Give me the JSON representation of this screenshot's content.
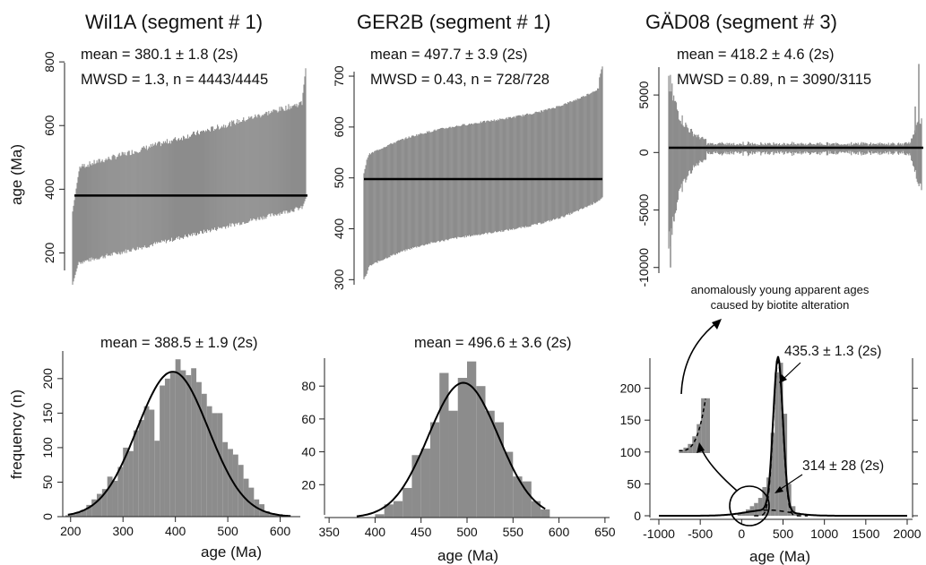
{
  "chart_data": [
    {
      "type": "bar",
      "panel": "top-left",
      "title": "Wil1A (segment # 1)",
      "stat_mean": "mean = 380.1 ± 1.8 (2s)",
      "stat_mwsd": "MWSD = 1.3, n = 4443/4445",
      "ylabel": "age (Ma)",
      "yticks": [
        "200",
        "400",
        "600",
        "800"
      ],
      "ylim": [
        100,
        820
      ],
      "mean_line": 380.1,
      "ranked_ages": {
        "low_start": 310,
        "low_end": 460,
        "mid_low": 250,
        "mid_high": 520,
        "high_start": 600,
        "high_end": 780,
        "base_start": 100,
        "base_end": 330
      },
      "grid": false
    },
    {
      "type": "bar",
      "panel": "top-middle",
      "title": "GER2B (segment # 1)",
      "stat_mean": "mean = 497.7 ± 3.9 (2s)",
      "stat_mwsd": "MWSD = 0.43, n = 728/728",
      "yticks": [
        "300",
        "400",
        "500",
        "600",
        "700"
      ],
      "ylim": [
        290,
        730
      ],
      "mean_line": 497.7,
      "ranked_ages": {
        "top_start": 510,
        "top_mid": 610,
        "top_end": 720,
        "bot_start": 300,
        "bot_mid": 400,
        "bot_end": 470
      },
      "grid": false
    },
    {
      "type": "bar",
      "panel": "top-right",
      "title": "GÄD08 (segment # 3)",
      "stat_mean": "mean = 418.2 ± 4.6 (2s)",
      "stat_mwsd": "MWSD = 0.89, n = 3090/3115",
      "yticks": [
        "-10000",
        "-5000",
        "0",
        "5000"
      ],
      "ylim": [
        -11500,
        8200
      ],
      "mean_line": 418.2,
      "grid": false
    },
    {
      "type": "bar",
      "panel": "bottom-left",
      "stat_mean": "mean = 388.5 ± 1.9 (2s)",
      "xlabel": "age (Ma)",
      "ylabel": "frequency (n)",
      "xticks": [
        "200",
        "300",
        "400",
        "500",
        "600"
      ],
      "yticks": [
        "0",
        "50",
        "100",
        "150",
        "200"
      ],
      "xlim": [
        185,
        635
      ],
      "ylim": [
        0,
        240
      ],
      "bins": [
        {
          "x": 190,
          "count": 2
        },
        {
          "x": 200,
          "count": 4
        },
        {
          "x": 210,
          "count": 6
        },
        {
          "x": 220,
          "count": 10
        },
        {
          "x": 230,
          "count": 17
        },
        {
          "x": 240,
          "count": 25
        },
        {
          "x": 250,
          "count": 33
        },
        {
          "x": 260,
          "count": 40
        },
        {
          "x": 270,
          "count": 58
        },
        {
          "x": 280,
          "count": 52
        },
        {
          "x": 290,
          "count": 72
        },
        {
          "x": 300,
          "count": 100
        },
        {
          "x": 310,
          "count": 95
        },
        {
          "x": 320,
          "count": 125
        },
        {
          "x": 330,
          "count": 140
        },
        {
          "x": 340,
          "count": 160
        },
        {
          "x": 350,
          "count": 155
        },
        {
          "x": 360,
          "count": 110
        },
        {
          "x": 370,
          "count": 190
        },
        {
          "x": 380,
          "count": 200
        },
        {
          "x": 390,
          "count": 210
        },
        {
          "x": 400,
          "count": 228
        },
        {
          "x": 410,
          "count": 212
        },
        {
          "x": 420,
          "count": 205
        },
        {
          "x": 430,
          "count": 215
        },
        {
          "x": 440,
          "count": 195
        },
        {
          "x": 450,
          "count": 178
        },
        {
          "x": 460,
          "count": 160
        },
        {
          "x": 470,
          "count": 150
        },
        {
          "x": 480,
          "count": 150
        },
        {
          "x": 490,
          "count": 108
        },
        {
          "x": 500,
          "count": 98
        },
        {
          "x": 510,
          "count": 90
        },
        {
          "x": 520,
          "count": 75
        },
        {
          "x": 530,
          "count": 55
        },
        {
          "x": 540,
          "count": 42
        },
        {
          "x": 550,
          "count": 25
        },
        {
          "x": 560,
          "count": 18
        },
        {
          "x": 570,
          "count": 8
        },
        {
          "x": 580,
          "count": 5
        },
        {
          "x": 590,
          "count": 3
        },
        {
          "x": 600,
          "count": 2
        },
        {
          "x": 610,
          "count": 1
        }
      ],
      "bin_width": 10,
      "curve": {
        "type": "gaussian",
        "mean": 395,
        "sd": 68,
        "peak": 210,
        "range": [
          195,
          620
        ]
      }
    },
    {
      "type": "bar",
      "panel": "bottom-middle",
      "stat_mean": "mean = 496.6 ± 3.6 (2s)",
      "xlabel": "age (Ma)",
      "xticks": [
        "350",
        "400",
        "450",
        "500",
        "550",
        "600",
        "650"
      ],
      "yticks": [
        "20",
        "40",
        "60",
        "80"
      ],
      "xlim": [
        345,
        655
      ],
      "ylim": [
        0,
        97
      ],
      "bins": [
        {
          "x": 400,
          "count": 2
        },
        {
          "x": 410,
          "count": 8
        },
        {
          "x": 420,
          "count": 10
        },
        {
          "x": 430,
          "count": 18
        },
        {
          "x": 440,
          "count": 38
        },
        {
          "x": 450,
          "count": 42
        },
        {
          "x": 460,
          "count": 58
        },
        {
          "x": 470,
          "count": 88
        },
        {
          "x": 480,
          "count": 65
        },
        {
          "x": 490,
          "count": 85
        },
        {
          "x": 500,
          "count": 95
        },
        {
          "x": 510,
          "count": 80
        },
        {
          "x": 520,
          "count": 65
        },
        {
          "x": 530,
          "count": 58
        },
        {
          "x": 540,
          "count": 40
        },
        {
          "x": 550,
          "count": 25
        },
        {
          "x": 560,
          "count": 22
        },
        {
          "x": 570,
          "count": 10
        },
        {
          "x": 580,
          "count": 5
        }
      ],
      "bin_width": 10,
      "curve": {
        "type": "gaussian",
        "mean": 496,
        "sd": 38,
        "peak": 82,
        "range": [
          380,
          585
        ]
      }
    },
    {
      "type": "bar",
      "panel": "bottom-right",
      "xlabel": "age (Ma)",
      "xticks": [
        "-1000",
        "-500",
        "0",
        "500",
        "1000",
        "1500",
        "2000"
      ],
      "yticks": [
        "0",
        "50",
        "100",
        "150",
        "200"
      ],
      "xlim": [
        -1000,
        2000
      ],
      "ylim": [
        0,
        250
      ],
      "annotation_top": [
        "anomalously young apparent ages",
        "caused by biotite alteration"
      ],
      "peak_label_1": "435.3 ± 1.3 (2s)",
      "peak_label_2": "314 ± 28 (2s)",
      "bins": [
        {
          "x": -50,
          "count": 3
        },
        {
          "x": 0,
          "count": 6
        },
        {
          "x": 50,
          "count": 10
        },
        {
          "x": 100,
          "count": 15
        },
        {
          "x": 150,
          "count": 20
        },
        {
          "x": 200,
          "count": 28
        },
        {
          "x": 250,
          "count": 45
        },
        {
          "x": 300,
          "count": 60
        },
        {
          "x": 350,
          "count": 130
        },
        {
          "x": 400,
          "count": 225
        },
        {
          "x": 450,
          "count": 240
        },
        {
          "x": 500,
          "count": 160
        },
        {
          "x": 550,
          "count": 50
        },
        {
          "x": 600,
          "count": 15
        },
        {
          "x": 650,
          "count": 5
        }
      ],
      "bin_width": 50,
      "curves": [
        {
          "type": "gaussian",
          "mean": 440,
          "sd": 58,
          "peak": 242
        },
        {
          "type": "gaussian",
          "mean": 314,
          "sd": 260,
          "peak": 9
        }
      ],
      "inset_bins": [
        {
          "x": -450,
          "count": 10
        },
        {
          "x": -350,
          "count": 18
        },
        {
          "x": -250,
          "count": 30
        },
        {
          "x": -150,
          "count": 55
        },
        {
          "x": -50,
          "count": 95
        },
        {
          "x": 50,
          "count": 180
        },
        {
          "x": 150,
          "count": 180
        }
      ]
    }
  ]
}
